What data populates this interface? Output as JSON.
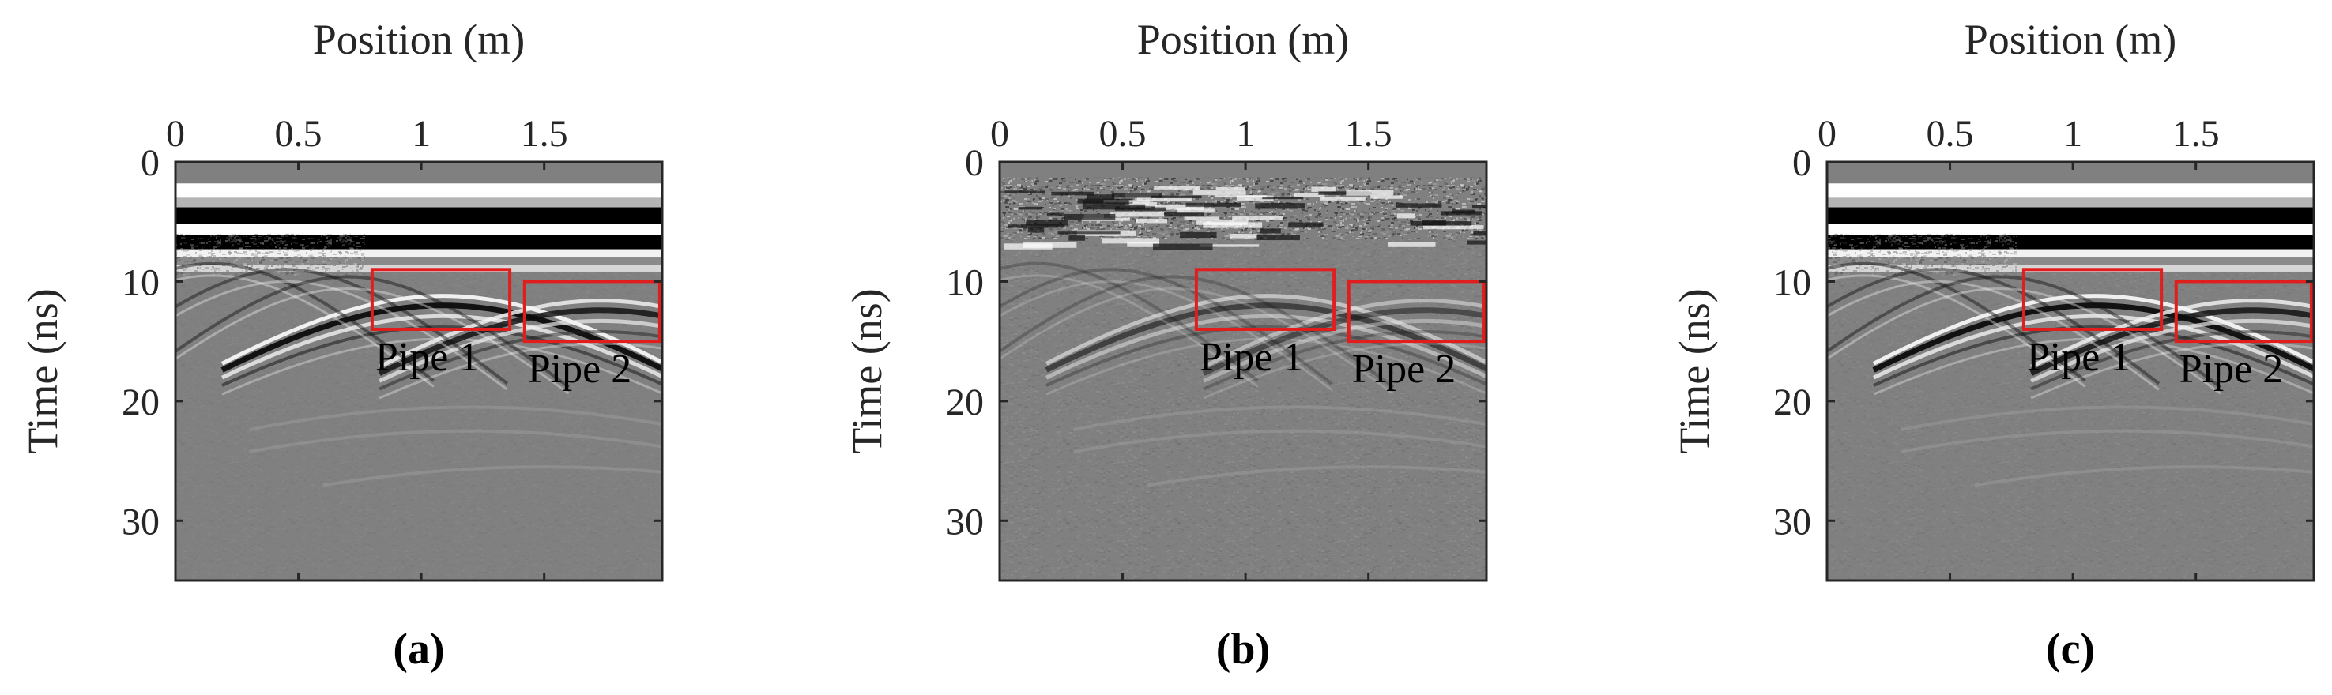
{
  "figure": {
    "panels": [
      {
        "caption": "(a)",
        "variant": "clean"
      },
      {
        "caption": "(b)",
        "variant": "noisy"
      },
      {
        "caption": "(c)",
        "variant": "denoised"
      }
    ]
  },
  "chart_data": [
    {
      "type": "heatmap",
      "colormap": "grayscale",
      "title": "",
      "xlabel": "Position (m)",
      "ylabel": "Time (ns)",
      "xaxis_position": "top",
      "xlim": [
        0,
        1.98
      ],
      "ylim": [
        0,
        35
      ],
      "xticks": [
        0,
        0.5,
        1,
        1.5
      ],
      "xtick_labels": [
        "0",
        "0.5",
        "1",
        "1.5"
      ],
      "yticks": [
        0,
        10,
        20,
        30
      ],
      "ytick_labels": [
        "0",
        "10",
        "20",
        "30"
      ],
      "caption": "(a)",
      "annotations": [
        {
          "label": "Pipe 1",
          "x_range": [
            0.8,
            1.36
          ],
          "y_range": [
            9,
            14
          ],
          "color": "#e01e1e"
        },
        {
          "label": "Pipe 2",
          "x_range": [
            1.42,
            1.97
          ],
          "y_range": [
            10,
            15
          ],
          "color": "#e01e1e"
        }
      ]
    },
    {
      "type": "heatmap",
      "colormap": "grayscale",
      "title": "",
      "xlabel": "Position (m)",
      "ylabel": "Time (ns)",
      "xaxis_position": "top",
      "xlim": [
        0,
        1.98
      ],
      "ylim": [
        0,
        35
      ],
      "xticks": [
        0,
        0.5,
        1,
        1.5
      ],
      "xtick_labels": [
        "0",
        "0.5",
        "1",
        "1.5"
      ],
      "yticks": [
        0,
        10,
        20,
        30
      ],
      "ytick_labels": [
        "0",
        "10",
        "20",
        "30"
      ],
      "caption": "(b)",
      "annotations": [
        {
          "label": "Pipe 1",
          "x_range": [
            0.8,
            1.36
          ],
          "y_range": [
            9,
            14
          ],
          "color": "#e01e1e"
        },
        {
          "label": "Pipe 2",
          "x_range": [
            1.42,
            1.97
          ],
          "y_range": [
            10,
            15
          ],
          "color": "#e01e1e"
        }
      ]
    },
    {
      "type": "heatmap",
      "colormap": "grayscale",
      "title": "",
      "xlabel": "Position (m)",
      "ylabel": "Time (ns)",
      "xaxis_position": "top",
      "xlim": [
        0,
        1.98
      ],
      "ylim": [
        0,
        35
      ],
      "xticks": [
        0,
        0.5,
        1,
        1.5
      ],
      "xtick_labels": [
        "0",
        "0.5",
        "1",
        "1.5"
      ],
      "yticks": [
        0,
        10,
        20,
        30
      ],
      "ytick_labels": [
        "0",
        "10",
        "20",
        "30"
      ],
      "caption": "(c)",
      "annotations": [
        {
          "label": "Pipe 1",
          "x_range": [
            0.8,
            1.36
          ],
          "y_range": [
            9,
            14
          ],
          "color": "#e01e1e"
        },
        {
          "label": "Pipe 2",
          "x_range": [
            1.42,
            1.97
          ],
          "y_range": [
            10,
            15
          ],
          "color": "#e01e1e"
        }
      ]
    }
  ]
}
